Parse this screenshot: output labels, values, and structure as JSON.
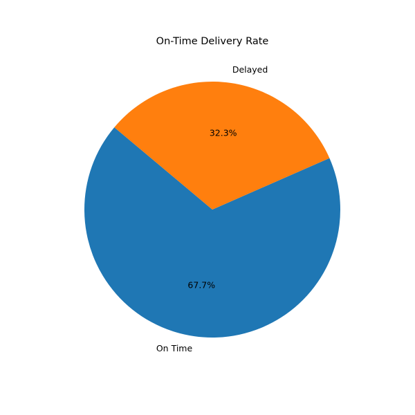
{
  "chart_data": {
    "type": "pie",
    "title": "On-Time Delivery Rate",
    "labels": [
      "On Time",
      "Delayed"
    ],
    "values": [
      67.7,
      32.3
    ],
    "autopct": [
      "67.7%",
      "32.3%"
    ],
    "colors": [
      "#1f77b4",
      "#ff7f0e"
    ],
    "start_angle_deg": 140,
    "direction": "counterclockwise",
    "legend": "none"
  }
}
